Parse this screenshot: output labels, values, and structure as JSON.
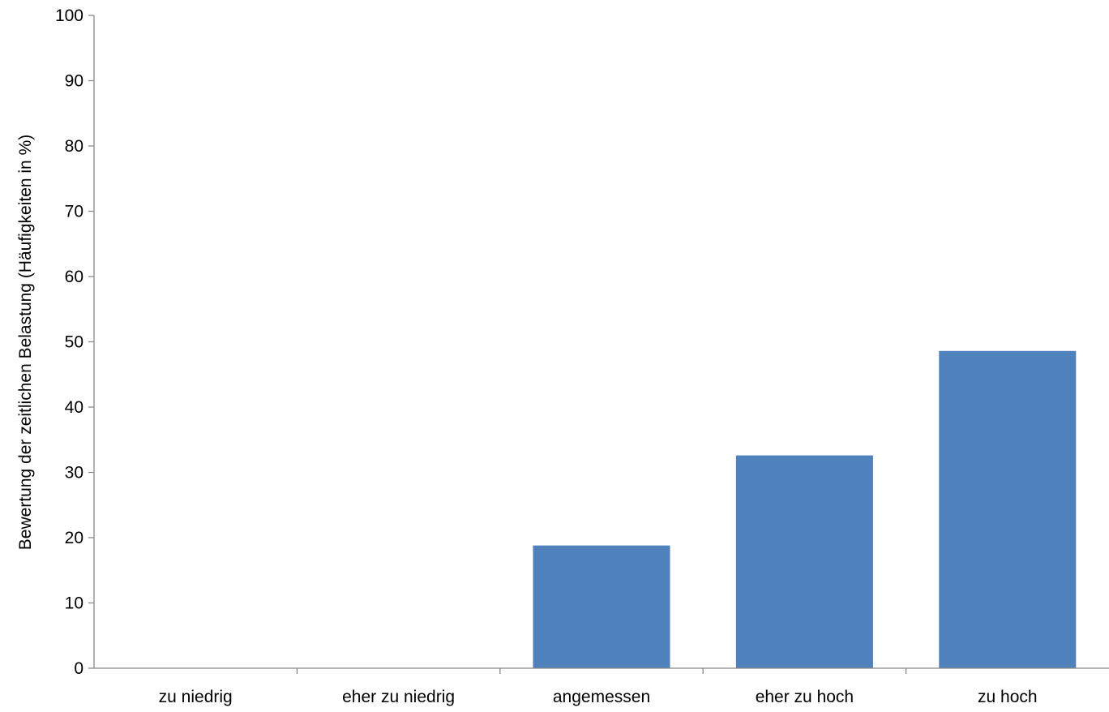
{
  "chart_data": {
    "type": "bar",
    "categories": [
      "zu niedrig",
      "eher zu niedrig",
      "angemessen",
      "eher zu hoch",
      "zu hoch"
    ],
    "values": [
      0,
      0,
      18.8,
      32.6,
      48.6
    ],
    "ylabel": "Bewertung der zeitlichen Belastung (Häufigkeiten in %)",
    "xlabel": "",
    "ylim": [
      0,
      100
    ],
    "yticks": [
      0,
      10,
      20,
      30,
      40,
      50,
      60,
      70,
      80,
      90,
      100
    ],
    "grid": false,
    "legend": "none",
    "bar_color": "#4f81bd",
    "axis_color": "#898989"
  }
}
